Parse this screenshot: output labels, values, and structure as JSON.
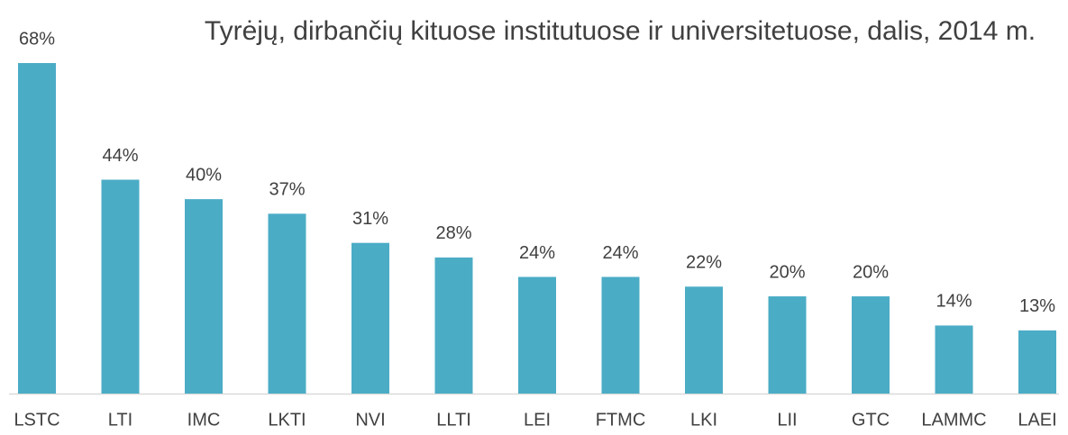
{
  "chart_data": {
    "type": "bar",
    "title": "Tyrėjų, dirbančių kituose institutuose ir universitetuose, dalis, 2014 m.",
    "categories": [
      "LSTC",
      "LTI",
      "IMC",
      "LKTI",
      "NVI",
      "LLTI",
      "LEI",
      "FTMC",
      "LKI",
      "LII",
      "GTC",
      "LAMMC",
      "LAEI"
    ],
    "values": [
      68,
      44,
      40,
      37,
      31,
      28,
      24,
      24,
      22,
      20,
      20,
      14,
      13
    ],
    "value_labels": [
      "68%",
      "44%",
      "40%",
      "37%",
      "31%",
      "28%",
      "24%",
      "24%",
      "22%",
      "20%",
      "20%",
      "14%",
      "13%"
    ],
    "color": "#4bacc6"
  }
}
